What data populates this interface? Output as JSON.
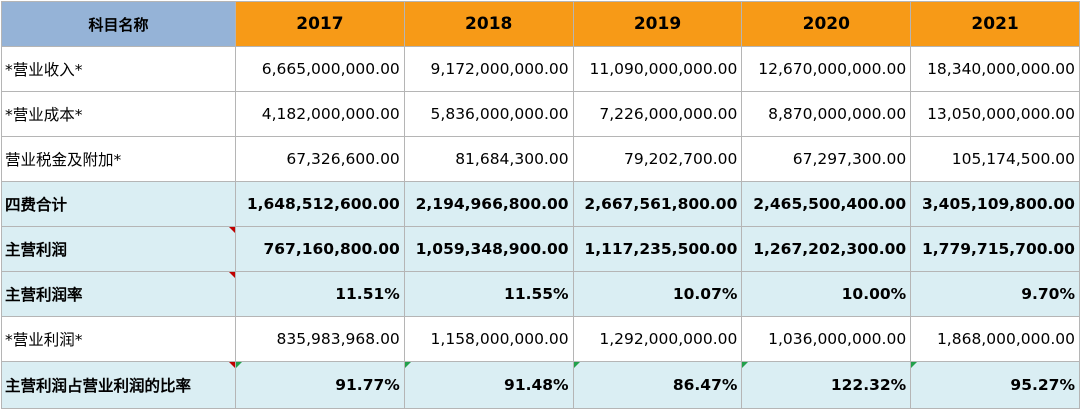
{
  "table": {
    "header_label": "科目名称",
    "years": [
      "2017",
      "2018",
      "2019",
      "2020",
      "2021"
    ],
    "rows": [
      {
        "label": "*营业收入*",
        "values": [
          "6,665,000,000.00",
          "9,172,000,000.00",
          "11,090,000,000.00",
          "12,670,000,000.00",
          "18,340,000,000.00"
        ]
      },
      {
        "label": "*营业成本*",
        "values": [
          "4,182,000,000.00",
          "5,836,000,000.00",
          "7,226,000,000.00",
          "8,870,000,000.00",
          "13,050,000,000.00"
        ]
      },
      {
        "label": "营业税金及附加*",
        "values": [
          "67,326,600.00",
          "81,684,300.00",
          "79,202,700.00",
          "67,297,300.00",
          "105,174,500.00"
        ]
      },
      {
        "label": "四费合计",
        "values": [
          "1,648,512,600.00",
          "2,194,966,800.00",
          "2,667,561,800.00",
          "2,465,500,400.00",
          "3,405,109,800.00"
        ]
      },
      {
        "label": "主营利润",
        "values": [
          "767,160,800.00",
          "1,059,348,900.00",
          "1,117,235,500.00",
          "1,267,202,300.00",
          "1,779,715,700.00"
        ]
      },
      {
        "label": "主营利润率",
        "values": [
          "11.51%",
          "11.55%",
          "10.07%",
          "10.00%",
          "9.70%"
        ]
      },
      {
        "label": "*营业利润*",
        "values": [
          "835,983,968.00",
          "1,158,000,000.00",
          "1,292,000,000.00",
          "1,036,000,000.00",
          "1,868,000,000.00"
        ]
      },
      {
        "label": "主营利润占营业利润的比率",
        "values": [
          "91.77%",
          "91.48%",
          "86.47%",
          "122.32%",
          "95.27%"
        ]
      }
    ]
  },
  "colors": {
    "header_label_bg": "#95b3d7",
    "header_year_bg": "#f79a17",
    "highlight_row_bg": "#daeef3",
    "comment_marker": "#c00000",
    "error_marker": "#22a04b"
  }
}
